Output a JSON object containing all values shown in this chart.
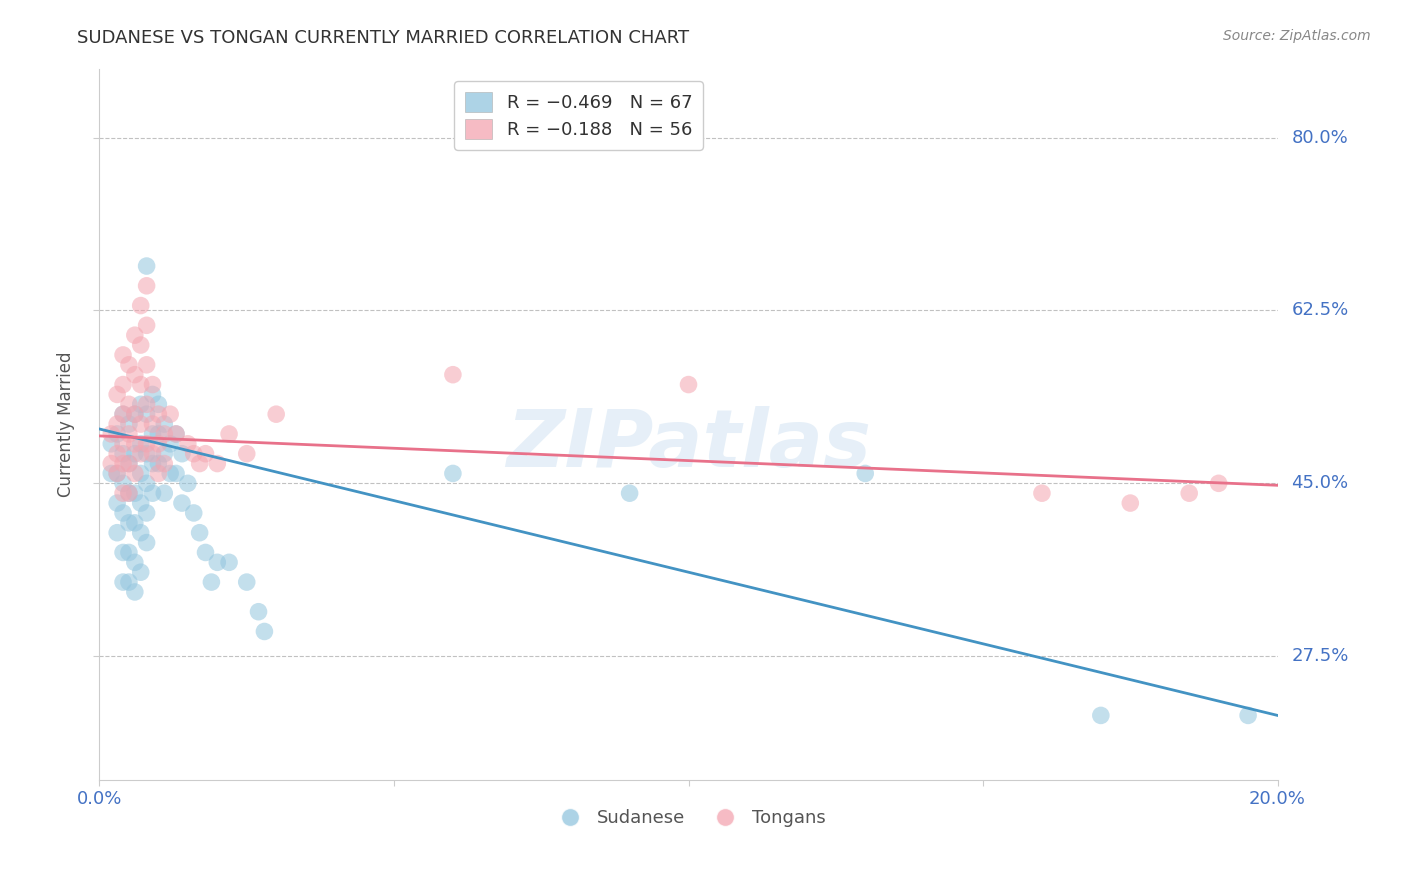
{
  "title": "SUDANESE VS TONGAN CURRENTLY MARRIED CORRELATION CHART",
  "source": "Source: ZipAtlas.com",
  "ylabel": "Currently Married",
  "ytick_labels": [
    "80.0%",
    "62.5%",
    "45.0%",
    "27.5%"
  ],
  "ytick_values": [
    0.8,
    0.625,
    0.45,
    0.275
  ],
  "ylim": [
    0.15,
    0.87
  ],
  "xlim": [
    0.0,
    0.2
  ],
  "legend_blue_label": "R = −0.469   N = 67",
  "legend_pink_label": "R = −0.188   N = 56",
  "watermark": "ZIPatlas",
  "blue_color": "#92c5de",
  "pink_color": "#f4a5b0",
  "blue_line_color": "#4393c3",
  "pink_line_color": "#e8718a",
  "blue_scatter": [
    [
      0.002,
      0.49
    ],
    [
      0.002,
      0.46
    ],
    [
      0.003,
      0.5
    ],
    [
      0.003,
      0.46
    ],
    [
      0.003,
      0.43
    ],
    [
      0.003,
      0.4
    ],
    [
      0.004,
      0.52
    ],
    [
      0.004,
      0.48
    ],
    [
      0.004,
      0.45
    ],
    [
      0.004,
      0.42
    ],
    [
      0.004,
      0.38
    ],
    [
      0.004,
      0.35
    ],
    [
      0.005,
      0.51
    ],
    [
      0.005,
      0.47
    ],
    [
      0.005,
      0.44
    ],
    [
      0.005,
      0.41
    ],
    [
      0.005,
      0.38
    ],
    [
      0.005,
      0.35
    ],
    [
      0.006,
      0.52
    ],
    [
      0.006,
      0.48
    ],
    [
      0.006,
      0.44
    ],
    [
      0.006,
      0.41
    ],
    [
      0.006,
      0.37
    ],
    [
      0.006,
      0.34
    ],
    [
      0.007,
      0.53
    ],
    [
      0.007,
      0.49
    ],
    [
      0.007,
      0.46
    ],
    [
      0.007,
      0.43
    ],
    [
      0.007,
      0.4
    ],
    [
      0.007,
      0.36
    ],
    [
      0.008,
      0.67
    ],
    [
      0.008,
      0.52
    ],
    [
      0.008,
      0.48
    ],
    [
      0.008,
      0.45
    ],
    [
      0.008,
      0.42
    ],
    [
      0.008,
      0.39
    ],
    [
      0.009,
      0.54
    ],
    [
      0.009,
      0.5
    ],
    [
      0.009,
      0.47
    ],
    [
      0.009,
      0.44
    ],
    [
      0.01,
      0.53
    ],
    [
      0.01,
      0.5
    ],
    [
      0.01,
      0.47
    ],
    [
      0.011,
      0.51
    ],
    [
      0.011,
      0.48
    ],
    [
      0.011,
      0.44
    ],
    [
      0.012,
      0.49
    ],
    [
      0.012,
      0.46
    ],
    [
      0.013,
      0.5
    ],
    [
      0.013,
      0.46
    ],
    [
      0.014,
      0.48
    ],
    [
      0.014,
      0.43
    ],
    [
      0.015,
      0.45
    ],
    [
      0.016,
      0.42
    ],
    [
      0.017,
      0.4
    ],
    [
      0.018,
      0.38
    ],
    [
      0.019,
      0.35
    ],
    [
      0.02,
      0.37
    ],
    [
      0.022,
      0.37
    ],
    [
      0.025,
      0.35
    ],
    [
      0.027,
      0.32
    ],
    [
      0.028,
      0.3
    ],
    [
      0.06,
      0.46
    ],
    [
      0.09,
      0.44
    ],
    [
      0.13,
      0.46
    ],
    [
      0.17,
      0.215
    ],
    [
      0.195,
      0.215
    ]
  ],
  "pink_scatter": [
    [
      0.002,
      0.5
    ],
    [
      0.002,
      0.47
    ],
    [
      0.003,
      0.54
    ],
    [
      0.003,
      0.51
    ],
    [
      0.003,
      0.48
    ],
    [
      0.003,
      0.46
    ],
    [
      0.004,
      0.58
    ],
    [
      0.004,
      0.55
    ],
    [
      0.004,
      0.52
    ],
    [
      0.004,
      0.49
    ],
    [
      0.004,
      0.47
    ],
    [
      0.004,
      0.44
    ],
    [
      0.005,
      0.57
    ],
    [
      0.005,
      0.53
    ],
    [
      0.005,
      0.5
    ],
    [
      0.005,
      0.47
    ],
    [
      0.005,
      0.44
    ],
    [
      0.006,
      0.6
    ],
    [
      0.006,
      0.56
    ],
    [
      0.006,
      0.52
    ],
    [
      0.006,
      0.49
    ],
    [
      0.006,
      0.46
    ],
    [
      0.007,
      0.63
    ],
    [
      0.007,
      0.59
    ],
    [
      0.007,
      0.55
    ],
    [
      0.007,
      0.51
    ],
    [
      0.007,
      0.48
    ],
    [
      0.008,
      0.65
    ],
    [
      0.008,
      0.61
    ],
    [
      0.008,
      0.57
    ],
    [
      0.008,
      0.53
    ],
    [
      0.008,
      0.49
    ],
    [
      0.009,
      0.55
    ],
    [
      0.009,
      0.51
    ],
    [
      0.009,
      0.48
    ],
    [
      0.01,
      0.52
    ],
    [
      0.01,
      0.49
    ],
    [
      0.01,
      0.46
    ],
    [
      0.011,
      0.5
    ],
    [
      0.011,
      0.47
    ],
    [
      0.012,
      0.52
    ],
    [
      0.013,
      0.5
    ],
    [
      0.015,
      0.49
    ],
    [
      0.016,
      0.48
    ],
    [
      0.017,
      0.47
    ],
    [
      0.018,
      0.48
    ],
    [
      0.02,
      0.47
    ],
    [
      0.022,
      0.5
    ],
    [
      0.025,
      0.48
    ],
    [
      0.03,
      0.52
    ],
    [
      0.06,
      0.56
    ],
    [
      0.1,
      0.55
    ],
    [
      0.16,
      0.44
    ],
    [
      0.175,
      0.43
    ],
    [
      0.185,
      0.44
    ],
    [
      0.19,
      0.45
    ]
  ],
  "blue_line_x": [
    0.0,
    0.2
  ],
  "blue_line_y": [
    0.505,
    0.215
  ],
  "pink_line_x": [
    0.0,
    0.2
  ],
  "pink_line_y": [
    0.498,
    0.448
  ],
  "background_color": "#ffffff",
  "grid_color": "#bbbbbb",
  "title_color": "#333333",
  "axis_tick_color": "#4472c4",
  "ytick_color": "#4472c4",
  "legend_bottom": [
    "Sudanese",
    "Tongans"
  ]
}
